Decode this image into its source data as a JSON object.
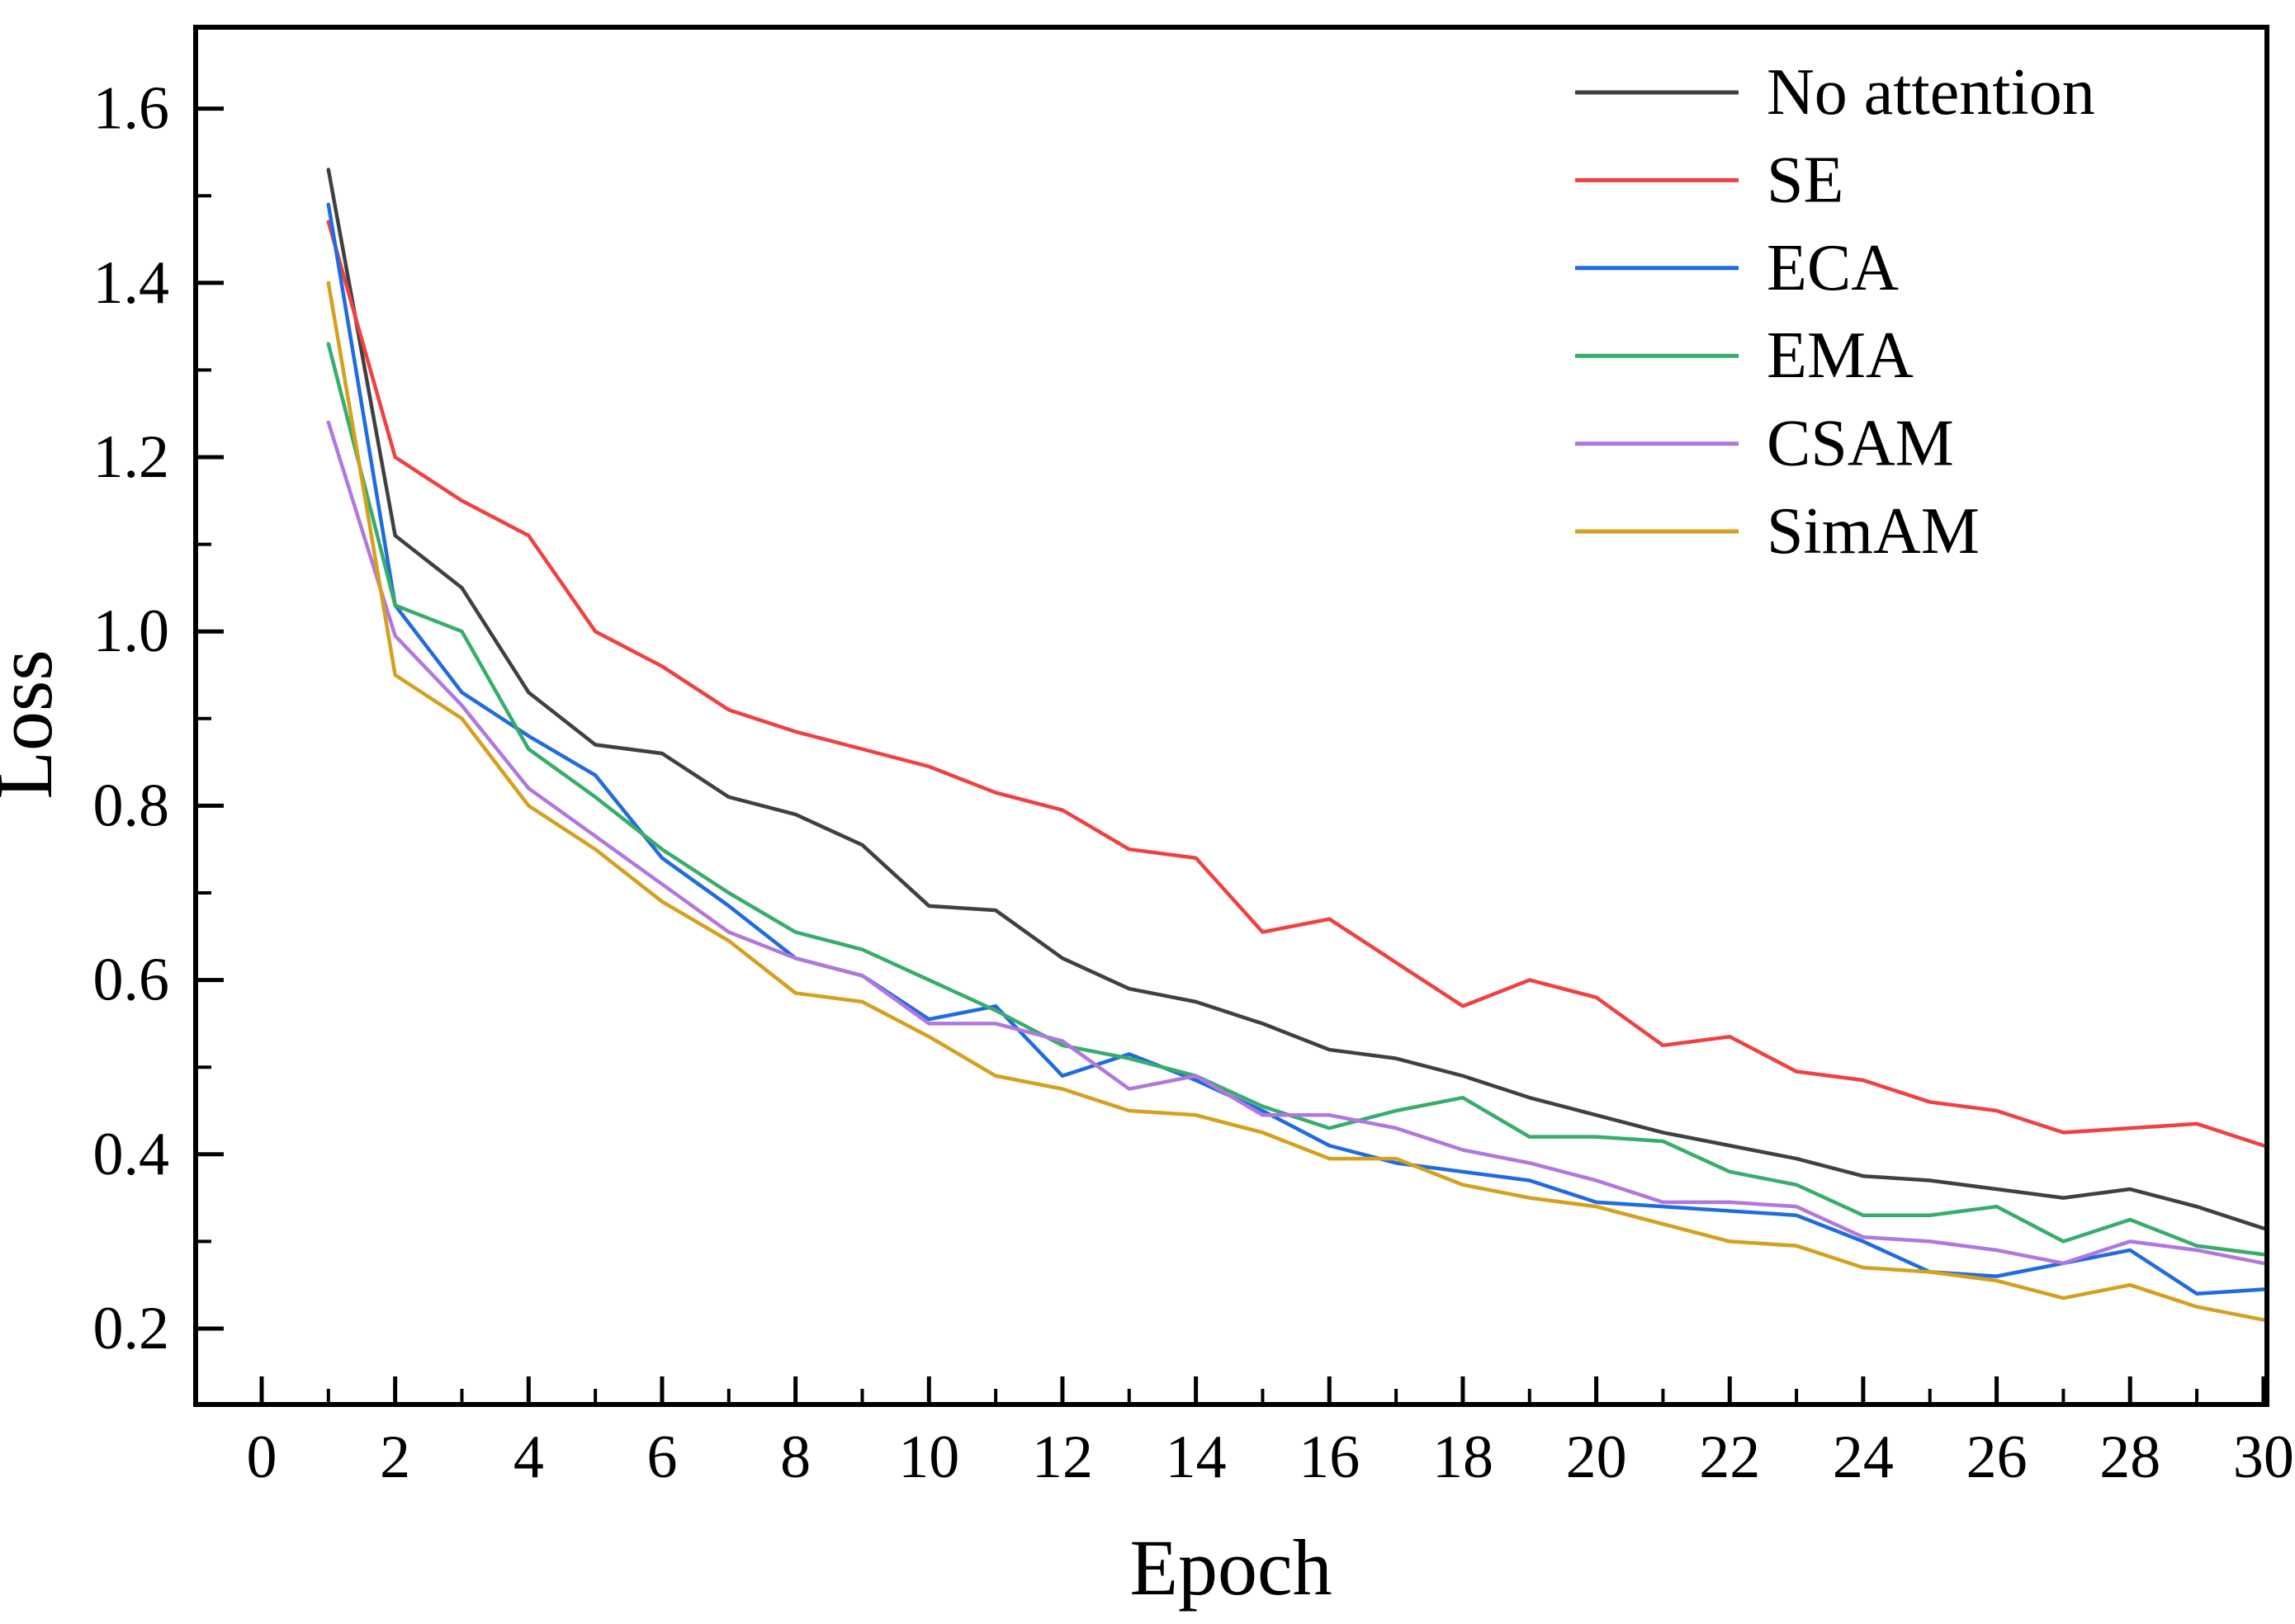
{
  "chart_data": {
    "type": "line",
    "title": "",
    "xlabel": "Epoch",
    "ylabel": "Loss",
    "grid": false,
    "legend_position": "top-right",
    "x": [
      1,
      2,
      3,
      4,
      5,
      6,
      7,
      8,
      9,
      10,
      11,
      12,
      13,
      14,
      15,
      16,
      17,
      18,
      19,
      20,
      21,
      22,
      23,
      24,
      25,
      26,
      27,
      28,
      29,
      30
    ],
    "x_axis": {
      "range": [
        0,
        30
      ],
      "tick_values": [
        0,
        2,
        4,
        6,
        8,
        10,
        12,
        14,
        16,
        18,
        20,
        22,
        24,
        26,
        28,
        30
      ],
      "tick_labels": [
        "0",
        "2",
        "4",
        "6",
        "8",
        "10",
        "12",
        "14",
        "16",
        "18",
        "20",
        "22",
        "24",
        "26",
        "28",
        "30"
      ],
      "minor_tick_values": [
        1,
        3,
        5,
        7,
        9,
        11,
        13,
        15,
        17,
        19,
        21,
        23,
        25,
        27,
        29
      ]
    },
    "y_axis": {
      "range": [
        0.2,
        1.6
      ],
      "tick_values": [
        0.2,
        0.4,
        0.6,
        0.8,
        1.0,
        1.2,
        1.4,
        1.6
      ],
      "tick_labels": [
        "0.2",
        "0.4",
        "0.6",
        "0.8",
        "1.0",
        "1.2",
        "1.4",
        "1.6"
      ],
      "minor_tick_values": [
        0.3,
        0.5,
        0.7,
        0.9,
        1.1,
        1.3,
        1.5
      ]
    },
    "series": [
      {
        "name": "No attention",
        "color": "#404040",
        "values": [
          1.53,
          1.11,
          1.05,
          0.93,
          0.87,
          0.86,
          0.81,
          0.79,
          0.755,
          0.685,
          0.68,
          0.625,
          0.59,
          0.575,
          0.55,
          0.52,
          0.51,
          0.49,
          0.465,
          0.445,
          0.425,
          0.41,
          0.395,
          0.375,
          0.37,
          0.36,
          0.35,
          0.36,
          0.34,
          0.315
        ]
      },
      {
        "name": "SE",
        "color": "#F14040",
        "values": [
          1.47,
          1.2,
          1.15,
          1.11,
          1.0,
          0.96,
          0.91,
          0.885,
          0.865,
          0.845,
          0.815,
          0.795,
          0.75,
          0.74,
          0.655,
          0.67,
          0.62,
          0.57,
          0.6,
          0.58,
          0.525,
          0.535,
          0.495,
          0.485,
          0.46,
          0.45,
          0.425,
          0.43,
          0.435,
          0.41
        ]
      },
      {
        "name": "ECA",
        "color": "#1F6BDF",
        "values": [
          1.49,
          1.03,
          0.93,
          0.88,
          0.835,
          0.74,
          0.685,
          0.625,
          0.605,
          0.555,
          0.57,
          0.49,
          0.515,
          0.485,
          0.45,
          0.41,
          0.39,
          0.38,
          0.37,
          0.345,
          0.34,
          0.335,
          0.33,
          0.3,
          0.265,
          0.26,
          0.275,
          0.29,
          0.24,
          0.245
        ]
      },
      {
        "name": "EMA",
        "color": "#37AD6B",
        "values": [
          1.33,
          1.03,
          1.0,
          0.865,
          0.81,
          0.75,
          0.7,
          0.655,
          0.635,
          0.6,
          0.565,
          0.525,
          0.51,
          0.49,
          0.455,
          0.43,
          0.45,
          0.465,
          0.42,
          0.42,
          0.415,
          0.38,
          0.365,
          0.33,
          0.33,
          0.34,
          0.3,
          0.325,
          0.295,
          0.285
        ]
      },
      {
        "name": "CSAM",
        "color": "#B177DE",
        "values": [
          1.24,
          0.995,
          0.915,
          0.82,
          0.765,
          0.71,
          0.655,
          0.625,
          0.605,
          0.55,
          0.55,
          0.53,
          0.475,
          0.49,
          0.445,
          0.445,
          0.43,
          0.405,
          0.39,
          0.37,
          0.345,
          0.345,
          0.34,
          0.305,
          0.3,
          0.29,
          0.275,
          0.3,
          0.29,
          0.275
        ]
      },
      {
        "name": "SimAM",
        "color": "#D4A01E",
        "values": [
          1.4,
          0.95,
          0.9,
          0.8,
          0.75,
          0.69,
          0.645,
          0.585,
          0.575,
          0.535,
          0.49,
          0.475,
          0.45,
          0.445,
          0.425,
          0.395,
          0.395,
          0.365,
          0.35,
          0.34,
          0.32,
          0.3,
          0.295,
          0.27,
          0.265,
          0.255,
          0.235,
          0.25,
          0.225,
          0.21
        ]
      }
    ]
  }
}
